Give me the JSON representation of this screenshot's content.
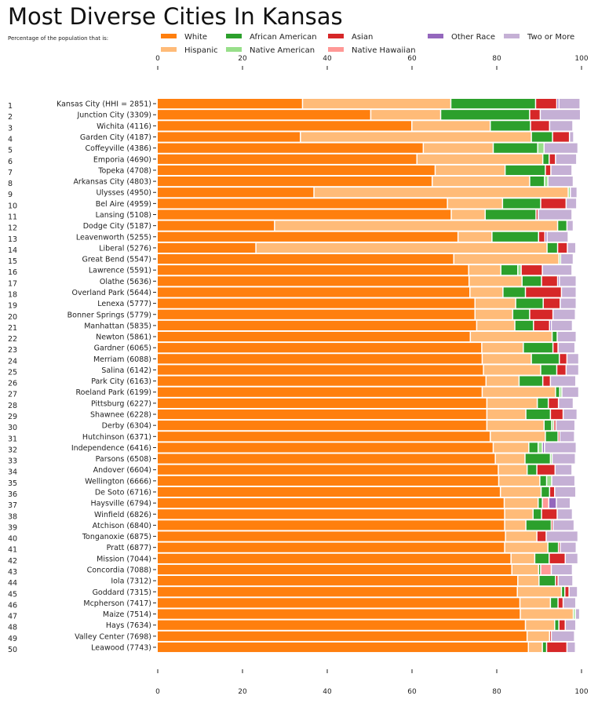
{
  "chart_data": {
    "type": "bar",
    "orientation": "horizontal",
    "stacked": true,
    "title": "Most Diverse Cities In Kansas",
    "subtitle": "Percentage of the population that is:",
    "xlim": [
      0,
      100
    ],
    "xticks": [
      "0",
      "20",
      "40",
      "60",
      "80",
      "100"
    ],
    "grid": false,
    "legend_position": "top",
    "rank_labels": [
      "1",
      "2",
      "3",
      "4",
      "5",
      "6",
      "7",
      "8",
      "9",
      "10",
      "11",
      "12",
      "13",
      "14",
      "15",
      "16",
      "17",
      "18",
      "19",
      "20",
      "21",
      "22",
      "23",
      "24",
      "25",
      "26",
      "27",
      "28",
      "29",
      "30",
      "31",
      "32",
      "33",
      "34",
      "35",
      "36",
      "37",
      "38",
      "39",
      "40",
      "41",
      "42",
      "43",
      "44",
      "45",
      "46",
      "47",
      "48",
      "49",
      "50"
    ],
    "categories": [
      "Kansas City (HHI = 2851)",
      "Junction City (3309)",
      "Wichita (4116)",
      "Garden City (4187)",
      "Coffeyville (4386)",
      "Emporia (4690)",
      "Topeka (4708)",
      "Arkansas City (4803)",
      "Ulysses (4950)",
      "Bel Aire (4959)",
      "Lansing (5108)",
      "Dodge City (5187)",
      "Leavenworth (5255)",
      "Liberal (5276)",
      "Great Bend (5547)",
      "Lawrence (5591)",
      "Olathe (5636)",
      "Overland Park (5644)",
      "Lenexa (5777)",
      "Bonner Springs (5779)",
      "Manhattan (5835)",
      "Newton (5861)",
      "Gardner (6065)",
      "Merriam (6088)",
      "Salina (6142)",
      "Park City (6163)",
      "Roeland Park (6199)",
      "Pittsburg (6227)",
      "Shawnee (6228)",
      "Derby (6304)",
      "Hutchinson (6371)",
      "Independence (6416)",
      "Parsons (6508)",
      "Andover (6604)",
      "Wellington (6666)",
      "De Soto (6716)",
      "Haysville (6794)",
      "Winfield (6826)",
      "Atchison (6840)",
      "Tonganoxie (6875)",
      "Pratt (6877)",
      "Mission (7044)",
      "Concordia (7088)",
      "Iola (7312)",
      "Goddard (7315)",
      "Mcpherson (7417)",
      "Maize (7514)",
      "Hays (7634)",
      "Valley Center (7698)",
      "Leawood (7743)"
    ],
    "series": [
      {
        "name": "White",
        "color": "#ff7f0e",
        "values": [
          34.3,
          50.4,
          60.1,
          33.8,
          62.8,
          61.3,
          65.6,
          64.9,
          37.0,
          68.5,
          69.4,
          27.7,
          71.0,
          23.3,
          70.0,
          73.5,
          73.6,
          73.8,
          75.0,
          75.0,
          75.4,
          73.9,
          76.6,
          76.7,
          77.0,
          77.6,
          76.7,
          77.8,
          77.8,
          77.8,
          78.6,
          79.3,
          79.8,
          80.5,
          80.6,
          81.0,
          81.9,
          82.0,
          82.0,
          82.2,
          82.0,
          83.5,
          83.7,
          85.1,
          85.0,
          85.6,
          85.7,
          86.9,
          87.3,
          87.6
        ]
      },
      {
        "name": "Hispanic",
        "color": "#ffbb78",
        "values": [
          35.0,
          16.5,
          18.5,
          54.5,
          16.5,
          29.7,
          16.5,
          23.0,
          60.0,
          13.0,
          8.0,
          66.8,
          8.0,
          68.7,
          24.8,
          7.6,
          12.5,
          7.8,
          9.6,
          8.9,
          9.0,
          19.3,
          9.8,
          11.6,
          13.5,
          7.8,
          17.3,
          11.9,
          9.2,
          13.5,
          13.0,
          8.4,
          7.0,
          6.8,
          9.7,
          9.6,
          8.0,
          6.7,
          5.0,
          7.4,
          10.2,
          5.6,
          6.3,
          5.0,
          10.4,
          7.2,
          12.5,
          6.9,
          5.3,
          3.3
        ]
      },
      {
        "name": "African American",
        "color": "#2ca02c",
        "values": [
          20.0,
          21.0,
          9.5,
          5.0,
          10.5,
          1.5,
          9.5,
          3.5,
          0,
          9.0,
          12.0,
          2.2,
          11.0,
          2.5,
          0,
          4.0,
          4.6,
          5.3,
          6.5,
          4.0,
          4.4,
          1.2,
          7.0,
          6.6,
          3.8,
          5.6,
          1.0,
          2.6,
          5.8,
          1.8,
          3.0,
          2.2,
          6.0,
          2.3,
          1.6,
          2.0,
          1.0,
          2.0,
          6.0,
          0,
          2.5,
          3.4,
          0.5,
          3.9,
          0.8,
          1.8,
          0,
          1.0,
          0,
          1.0
        ]
      },
      {
        "name": "Native American",
        "color": "#98df8a",
        "values": [
          0,
          0,
          0,
          0,
          1.5,
          0,
          0,
          0.8,
          0.5,
          0,
          0,
          0,
          0,
          0,
          0.4,
          0.8,
          0,
          0,
          0,
          0,
          0,
          0,
          0,
          0,
          0,
          0,
          0.5,
          0,
          0,
          0.5,
          0,
          1.0,
          0.4,
          0,
          1.2,
          0,
          0,
          0,
          0,
          0,
          0,
          0,
          0,
          0,
          0,
          0,
          0.5,
          0,
          0,
          0
        ]
      },
      {
        "name": "Asian",
        "color": "#d62728",
        "values": [
          5.0,
          2.5,
          4.5,
          4.0,
          0,
          1.5,
          1.3,
          0,
          0,
          6.0,
          0.5,
          0,
          1.5,
          2.3,
          0,
          5.0,
          3.8,
          8.5,
          4.0,
          5.5,
          3.8,
          0,
          1.2,
          1.8,
          2.2,
          1.8,
          0,
          2.4,
          3.0,
          0.5,
          0.4,
          0,
          0,
          4.3,
          0,
          1.2,
          0,
          3.7,
          0.4,
          2.2,
          0.4,
          3.8,
          0,
          0.6,
          1.0,
          1.2,
          0,
          1.5,
          0.4,
          4.8
        ]
      },
      {
        "name": "Native Hawaiian",
        "color": "#ff9896",
        "values": [
          0,
          0,
          0,
          0,
          0,
          0,
          0,
          0,
          0,
          0,
          0,
          0,
          0,
          0,
          0,
          0,
          0,
          0,
          0,
          0,
          0,
          0,
          0,
          0,
          0,
          0,
          0,
          0,
          0,
          0,
          0,
          0,
          0,
          0,
          0,
          0,
          1.5,
          0,
          0,
          0,
          0,
          0,
          2.5,
          0,
          0,
          0,
          0,
          0,
          0,
          0
        ]
      },
      {
        "name": "Other Race",
        "color": "#9467bd",
        "values": [
          0.5,
          0,
          0,
          0,
          0,
          0,
          0,
          0,
          0,
          0,
          0,
          0,
          0.5,
          0,
          0,
          0,
          0.4,
          0,
          0,
          0,
          0.4,
          0,
          0,
          0,
          0,
          0,
          0,
          0,
          0,
          0,
          0,
          0.5,
          0,
          0,
          0,
          0,
          1.8,
          0,
          0,
          0,
          0,
          0,
          0,
          0,
          0,
          0,
          0,
          0,
          0,
          0
        ]
      },
      {
        "name": "Two or More",
        "color": "#c5b0d5",
        "values": [
          5.0,
          9.5,
          5.5,
          1.0,
          8.0,
          5.0,
          5.0,
          6.0,
          1.6,
          2.5,
          8.0,
          1.5,
          5.0,
          2.0,
          3.0,
          7.0,
          4.0,
          3.5,
          3.8,
          5.3,
          5.0,
          4.5,
          4.0,
          2.8,
          3.0,
          6.0,
          4.0,
          3.5,
          3.3,
          4.5,
          3.5,
          7.5,
          5.5,
          4.0,
          5.5,
          5.0,
          3.3,
          3.6,
          5.0,
          7.5,
          3.8,
          3.0,
          5.0,
          3.5,
          2.0,
          3.0,
          1.0,
          2.5,
          5.5,
          2.0
        ]
      }
    ]
  }
}
